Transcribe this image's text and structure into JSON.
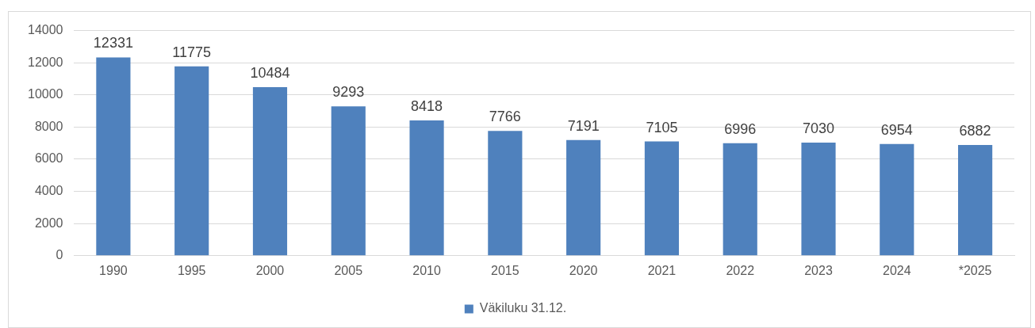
{
  "chart_data": {
    "type": "bar",
    "categories": [
      "1990",
      "1995",
      "2000",
      "2005",
      "2010",
      "2015",
      "2020",
      "2021",
      "2022",
      "2023",
      "2024",
      "*2025"
    ],
    "series": [
      {
        "name": "Väkiluku 31.12.",
        "color": "#4f81bd",
        "values": [
          12331,
          11775,
          10484,
          9293,
          8418,
          7766,
          7191,
          7105,
          6996,
          7030,
          6954,
          6882
        ]
      }
    ],
    "ylim": [
      0,
      14000
    ],
    "yticks": [
      0,
      2000,
      4000,
      6000,
      8000,
      10000,
      12000,
      14000
    ],
    "grid": "y",
    "legend": "bottom",
    "data_labels": true
  }
}
